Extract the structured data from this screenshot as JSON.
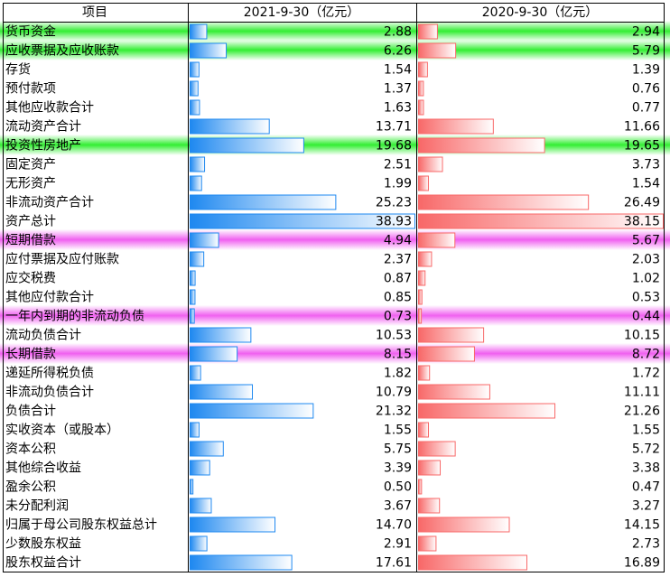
{
  "chart_data": {
    "type": "table_bar",
    "category_header": "项目",
    "categories": [
      "货币资金",
      "应收票据及应收账款",
      "存货",
      "预付款项",
      "其他应收款合计",
      "流动资产合计",
      "投资性房地产",
      "固定资产",
      "无形资产",
      "非流动资产合计",
      "资产总计",
      "短期借款",
      "应付票据及应付账款",
      "应交税费",
      "其他应付款合计",
      "一年内到期的非流动负债",
      "流动负债合计",
      "长期借款",
      "递延所得税负债",
      "非流动负债合计",
      "负债合计",
      "实收资本（或股本）",
      "资本公积",
      "其他综合收益",
      "盈余公积",
      "未分配利润",
      "归属于母公司股东权益总计",
      "少数股东权益",
      "股东权益合计"
    ],
    "series": [
      {
        "name": "2021-9-30（亿元）",
        "color": "#1e88f0",
        "xlim": [
          0,
          38.93
        ],
        "values": [
          2.88,
          6.26,
          1.54,
          1.37,
          1.63,
          13.71,
          19.68,
          2.51,
          1.99,
          25.23,
          38.93,
          4.94,
          2.37,
          0.87,
          0.85,
          0.73,
          10.53,
          8.15,
          1.82,
          10.79,
          21.32,
          1.55,
          5.75,
          3.39,
          0.5,
          3.67,
          14.7,
          2.91,
          17.61
        ],
        "value_labels": [
          "2.88",
          "6.26",
          "1.54",
          "1.37",
          "1.63",
          "13.71",
          "19.68",
          "2.51",
          "1.99",
          "25.23",
          "38.93",
          "4.94",
          "2.37",
          "0.87",
          "0.85",
          "0.73",
          "10.53",
          "8.15",
          "1.82",
          "10.79",
          "21.32",
          "1.55",
          "5.75",
          "3.39",
          "0.50",
          "3.67",
          "14.70",
          "2.91",
          "17.61"
        ]
      },
      {
        "name": "2020-9-30（亿元）",
        "color": "#f86868",
        "xlim": [
          0,
          38.15
        ],
        "values": [
          2.94,
          5.79,
          1.39,
          0.76,
          0.77,
          11.66,
          19.65,
          3.73,
          1.54,
          26.49,
          38.15,
          5.67,
          2.03,
          1.02,
          0.53,
          0.44,
          10.15,
          8.72,
          1.72,
          11.11,
          21.26,
          1.55,
          5.72,
          3.38,
          0.47,
          3.27,
          14.15,
          2.73,
          16.89
        ],
        "value_labels": [
          "2.94",
          "5.79",
          "1.39",
          "0.76",
          "0.77",
          "11.66",
          "19.65",
          "3.73",
          "1.54",
          "26.49",
          "38.15",
          "5.67",
          "2.03",
          "1.02",
          "0.53",
          "0.44",
          "10.15",
          "8.72",
          "1.72",
          "11.11",
          "21.26",
          "1.55",
          "5.72",
          "3.38",
          "0.47",
          "3.27",
          "14.15",
          "2.73",
          "16.89"
        ]
      }
    ],
    "highlights": [
      {
        "color": "#33ee33",
        "rows": [
          0,
          1,
          6
        ]
      },
      {
        "color": "#f060f0",
        "rows": [
          11,
          15,
          17
        ]
      }
    ]
  }
}
